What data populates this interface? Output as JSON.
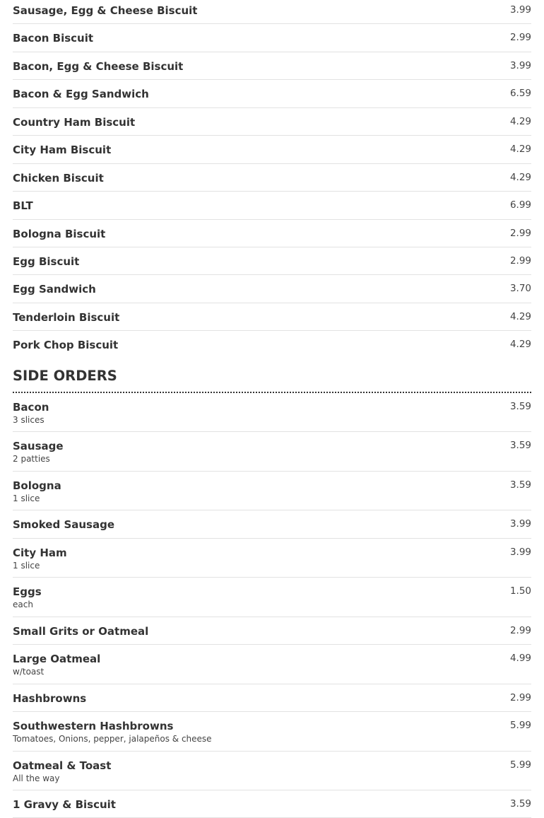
{
  "breakfast_items": [
    {
      "name": "Sausage, Egg & Cheese Biscuit",
      "price": "3.99"
    },
    {
      "name": "Bacon Biscuit",
      "price": "2.99"
    },
    {
      "name": "Bacon, Egg & Cheese Biscuit",
      "price": "3.99"
    },
    {
      "name": "Bacon & Egg Sandwich",
      "price": "6.59"
    },
    {
      "name": "Country Ham Biscuit",
      "price": "4.29"
    },
    {
      "name": "City Ham Biscuit",
      "price": "4.29"
    },
    {
      "name": "Chicken Biscuit",
      "price": "4.29"
    },
    {
      "name": "BLT",
      "price": "6.99"
    },
    {
      "name": "Bologna Biscuit",
      "price": "2.99"
    },
    {
      "name": "Egg Biscuit",
      "price": "2.99"
    },
    {
      "name": "Egg Sandwich",
      "price": "3.70"
    },
    {
      "name": "Tenderloin Biscuit",
      "price": "4.29"
    },
    {
      "name": "Pork Chop Biscuit",
      "price": "4.29"
    }
  ],
  "side_orders": {
    "heading": "SIDE ORDERS",
    "items": [
      {
        "name": "Bacon",
        "desc": "3 slices",
        "price": "3.59"
      },
      {
        "name": "Sausage",
        "desc": "2 patties",
        "price": "3.59"
      },
      {
        "name": "Bologna",
        "desc": "1 slice",
        "price": "3.59"
      },
      {
        "name": "Smoked Sausage",
        "desc": "",
        "price": "3.99"
      },
      {
        "name": "City Ham",
        "desc": "1 slice",
        "price": "3.99"
      },
      {
        "name": "Eggs",
        "desc": "each",
        "price": "1.50"
      },
      {
        "name": "Small Grits or Oatmeal",
        "desc": "",
        "price": "2.99"
      },
      {
        "name": "Large Oatmeal",
        "desc": "w/toast",
        "price": "4.99"
      },
      {
        "name": "Hashbrowns",
        "desc": "",
        "price": "2.99"
      },
      {
        "name": "Southwestern Hashbrowns",
        "desc": "Tomatoes, Onions, pepper, jalapeños & cheese",
        "price": "5.99"
      },
      {
        "name": "Oatmeal & Toast",
        "desc": "All the way",
        "price": "5.99"
      },
      {
        "name": "1 Gravy & Biscuit",
        "desc": "",
        "price": "3.59"
      }
    ]
  }
}
